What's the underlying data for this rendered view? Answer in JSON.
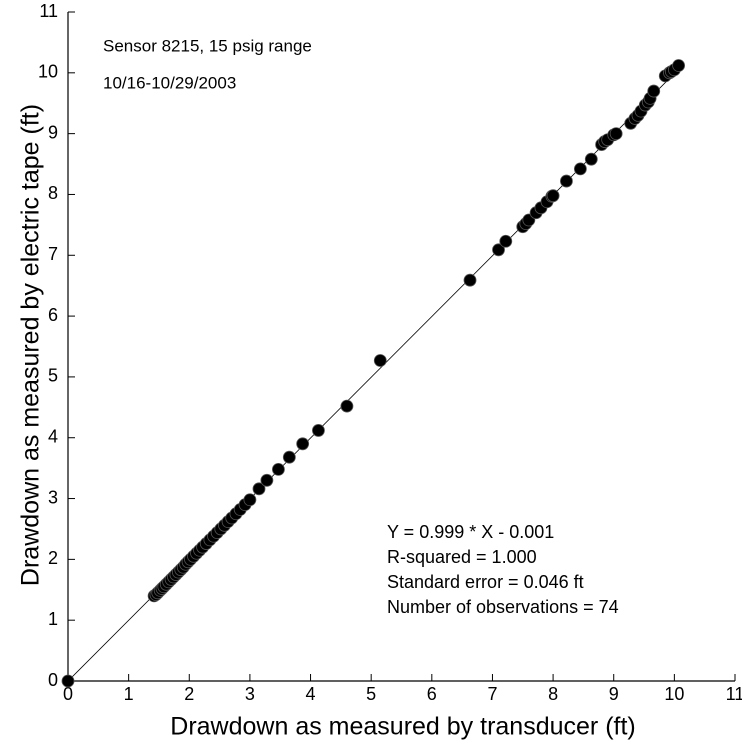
{
  "chart_data": {
    "type": "scatter",
    "x_label": "Drawdown as measured by transducer (ft)",
    "y_label": "Drawdown as measured by electric tape (ft)",
    "annotations": [
      "Sensor 8215, 15 psig range",
      "10/16-10/29/2003"
    ],
    "stats": [
      "Y = 0.999 * X - 0.001",
      "R-squared = 1.000",
      "Standard error = 0.046 ft",
      "Number of observations = 74"
    ],
    "xlim": [
      0,
      11
    ],
    "ylim": [
      0,
      11
    ],
    "xticks": [
      0,
      1,
      2,
      3,
      4,
      5,
      6,
      7,
      8,
      9,
      10,
      11
    ],
    "yticks": [
      0,
      1,
      2,
      3,
      4,
      5,
      6,
      7,
      8,
      9,
      10,
      11
    ],
    "color": "#000000",
    "fit_line": {
      "x": [
        0,
        10.1
      ],
      "values": [
        -0.001,
        10.089
      ]
    },
    "x": [
      0,
      1.42,
      1.45,
      1.48,
      1.52,
      1.55,
      1.58,
      1.62,
      1.66,
      1.7,
      1.74,
      1.78,
      1.82,
      1.86,
      1.9,
      1.94,
      1.98,
      2.02,
      2.07,
      2.12,
      2.17,
      2.22,
      2.28,
      2.34,
      2.4,
      2.46,
      2.52,
      2.58,
      2.64,
      2.7,
      2.77,
      2.84,
      2.92,
      3.0,
      3.15,
      3.28,
      3.47,
      3.65,
      3.87,
      4.13,
      4.6,
      5.15,
      6.63,
      7.1,
      7.22,
      7.5,
      7.55,
      7.6,
      7.72,
      7.8,
      7.9,
      7.98,
      8.0,
      8.22,
      8.45,
      8.63,
      8.8,
      8.85,
      8.9,
      9.0,
      9.04,
      9.28,
      9.35,
      9.4,
      9.45,
      9.52,
      9.57,
      9.6,
      9.66,
      9.85,
      9.92,
      9.95,
      10.0,
      10.07
    ],
    "values": [
      0,
      1.4,
      1.42,
      1.45,
      1.49,
      1.52,
      1.55,
      1.59,
      1.63,
      1.67,
      1.71,
      1.75,
      1.79,
      1.83,
      1.87,
      1.92,
      1.96,
      2.0,
      2.05,
      2.1,
      2.15,
      2.2,
      2.26,
      2.32,
      2.38,
      2.44,
      2.5,
      2.56,
      2.62,
      2.68,
      2.75,
      2.82,
      2.9,
      2.98,
      3.16,
      3.3,
      3.48,
      3.68,
      3.9,
      4.12,
      4.52,
      5.27,
      6.59,
      7.09,
      7.23,
      7.47,
      7.52,
      7.58,
      7.7,
      7.78,
      7.88,
      7.97,
      7.98,
      8.22,
      8.42,
      8.58,
      8.82,
      8.87,
      8.9,
      8.98,
      9.0,
      9.17,
      9.25,
      9.3,
      9.37,
      9.47,
      9.52,
      9.58,
      9.7,
      9.95,
      10.0,
      10.02,
      10.05,
      10.12
    ]
  }
}
